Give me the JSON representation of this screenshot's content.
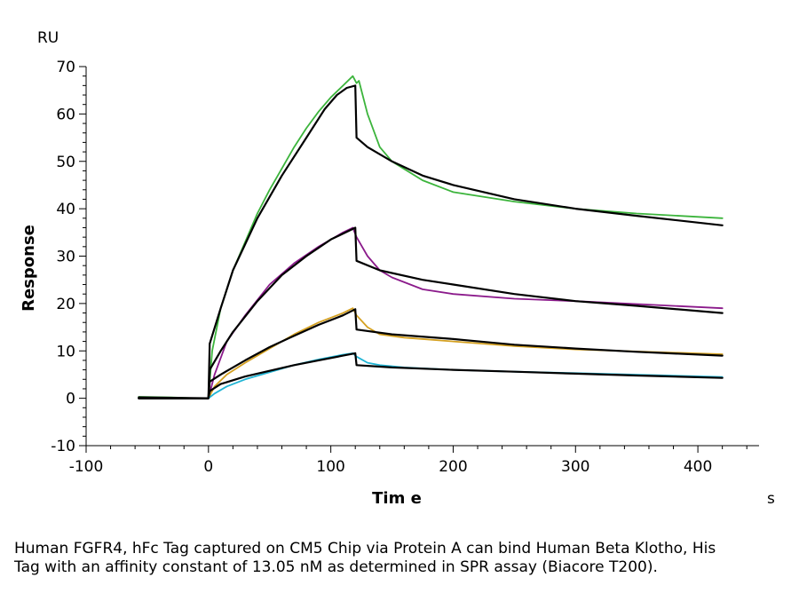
{
  "chart_data": {
    "type": "line",
    "xlabel": "Tim e",
    "ylabel": "Response",
    "x_unit": "s",
    "y_unit": "RU",
    "xlim": [
      -100,
      450
    ],
    "ylim": [
      -10,
      70
    ],
    "x_ticks": [
      -100,
      0,
      100,
      200,
      300,
      400
    ],
    "y_ticks": [
      -10,
      0,
      10,
      20,
      30,
      40,
      50,
      60,
      70
    ],
    "grid": false,
    "legend": "none",
    "series": [
      {
        "role": "data",
        "color": "#3cb43c",
        "points": [
          [
            -57,
            0.3
          ],
          [
            -30,
            0.2
          ],
          [
            -10,
            0
          ],
          [
            0,
            0
          ],
          [
            3,
            10
          ],
          [
            10,
            19
          ],
          [
            20,
            27
          ],
          [
            30,
            33
          ],
          [
            40,
            39
          ],
          [
            50,
            44
          ],
          [
            60,
            48.5
          ],
          [
            70,
            53
          ],
          [
            80,
            57
          ],
          [
            90,
            60.5
          ],
          [
            100,
            63.5
          ],
          [
            110,
            66
          ],
          [
            118,
            68
          ],
          [
            121,
            66.5
          ],
          [
            123,
            67
          ],
          [
            130,
            60
          ],
          [
            140,
            53
          ],
          [
            150,
            50
          ],
          [
            175,
            46
          ],
          [
            200,
            43.5
          ],
          [
            250,
            41.5
          ],
          [
            300,
            40
          ],
          [
            350,
            39
          ],
          [
            420,
            38
          ]
        ]
      },
      {
        "role": "data",
        "color": "#8b1a8b",
        "points": [
          [
            -57,
            0
          ],
          [
            0,
            0
          ],
          [
            5,
            5
          ],
          [
            15,
            12
          ],
          [
            30,
            17.5
          ],
          [
            50,
            24
          ],
          [
            70,
            28.5
          ],
          [
            90,
            32
          ],
          [
            110,
            35
          ],
          [
            118,
            36
          ],
          [
            121,
            34
          ],
          [
            130,
            30
          ],
          [
            140,
            27
          ],
          [
            150,
            25.5
          ],
          [
            175,
            23
          ],
          [
            200,
            22
          ],
          [
            250,
            21
          ],
          [
            300,
            20.5
          ],
          [
            420,
            19
          ]
        ]
      },
      {
        "role": "data",
        "color": "#d4a020",
        "points": [
          [
            -57,
            0
          ],
          [
            0,
            0
          ],
          [
            5,
            2.5
          ],
          [
            15,
            5
          ],
          [
            30,
            7.5
          ],
          [
            50,
            10.5
          ],
          [
            70,
            13.5
          ],
          [
            90,
            16
          ],
          [
            110,
            18
          ],
          [
            118,
            19
          ],
          [
            121,
            17.5
          ],
          [
            130,
            15
          ],
          [
            140,
            13.5
          ],
          [
            160,
            12.8
          ],
          [
            200,
            12
          ],
          [
            250,
            11
          ],
          [
            300,
            10.3
          ],
          [
            420,
            9.3
          ]
        ]
      },
      {
        "role": "data",
        "color": "#20b4d4",
        "points": [
          [
            -57,
            0
          ],
          [
            0,
            0
          ],
          [
            5,
            1
          ],
          [
            15,
            2.5
          ],
          [
            30,
            4
          ],
          [
            50,
            5.5
          ],
          [
            70,
            7
          ],
          [
            90,
            8.2
          ],
          [
            110,
            9.2
          ],
          [
            118,
            9.5
          ],
          [
            121,
            8.8
          ],
          [
            130,
            7.5
          ],
          [
            140,
            7
          ],
          [
            160,
            6.5
          ],
          [
            200,
            6
          ],
          [
            250,
            5.6
          ],
          [
            300,
            5.3
          ],
          [
            420,
            4.5
          ]
        ]
      },
      {
        "role": "fit",
        "color": "#000000",
        "points": [
          [
            -57,
            0.2
          ],
          [
            0,
            0
          ],
          [
            1,
            11.5
          ],
          [
            10,
            19
          ],
          [
            20,
            27
          ],
          [
            40,
            38
          ],
          [
            60,
            47
          ],
          [
            80,
            55
          ],
          [
            95,
            61
          ],
          [
            105,
            64
          ],
          [
            113,
            65.5
          ],
          [
            120,
            66
          ],
          [
            121,
            55
          ],
          [
            130,
            53
          ],
          [
            150,
            50
          ],
          [
            175,
            47
          ],
          [
            200,
            45
          ],
          [
            250,
            42
          ],
          [
            300,
            40
          ],
          [
            350,
            38.5
          ],
          [
            420,
            36.5
          ]
        ]
      },
      {
        "role": "fit",
        "color": "#000000",
        "points": [
          [
            -57,
            0
          ],
          [
            0,
            0
          ],
          [
            1,
            6
          ],
          [
            10,
            10
          ],
          [
            20,
            14
          ],
          [
            40,
            20.5
          ],
          [
            60,
            26
          ],
          [
            80,
            30
          ],
          [
            100,
            33.5
          ],
          [
            120,
            36
          ],
          [
            121,
            29
          ],
          [
            140,
            27
          ],
          [
            175,
            25
          ],
          [
            200,
            24
          ],
          [
            250,
            22
          ],
          [
            300,
            20.5
          ],
          [
            350,
            19.5
          ],
          [
            420,
            18
          ]
        ]
      },
      {
        "role": "fit",
        "color": "#000000",
        "points": [
          [
            -57,
            0
          ],
          [
            0,
            0
          ],
          [
            1,
            3.5
          ],
          [
            10,
            5
          ],
          [
            30,
            8
          ],
          [
            50,
            10.8
          ],
          [
            70,
            13.2
          ],
          [
            90,
            15.5
          ],
          [
            110,
            17.5
          ],
          [
            120,
            18.8
          ],
          [
            121,
            14.5
          ],
          [
            150,
            13.5
          ],
          [
            200,
            12.5
          ],
          [
            250,
            11.3
          ],
          [
            300,
            10.5
          ],
          [
            350,
            9.8
          ],
          [
            420,
            9
          ]
        ]
      },
      {
        "role": "fit",
        "color": "#000000",
        "points": [
          [
            -57,
            0
          ],
          [
            0,
            0
          ],
          [
            1,
            1.5
          ],
          [
            10,
            3
          ],
          [
            30,
            4.6
          ],
          [
            50,
            5.8
          ],
          [
            70,
            7
          ],
          [
            90,
            8
          ],
          [
            110,
            9
          ],
          [
            120,
            9.5
          ],
          [
            121,
            7
          ],
          [
            150,
            6.5
          ],
          [
            200,
            6
          ],
          [
            250,
            5.6
          ],
          [
            300,
            5.2
          ],
          [
            350,
            4.8
          ],
          [
            420,
            4.3
          ]
        ]
      }
    ]
  },
  "caption": "Human FGFR4, hFc Tag captured on CM5 Chip via Protein A can bind Human Beta Klotho, His Tag with an affinity constant of 13.05 nM as determined in SPR assay (Biacore T200)."
}
